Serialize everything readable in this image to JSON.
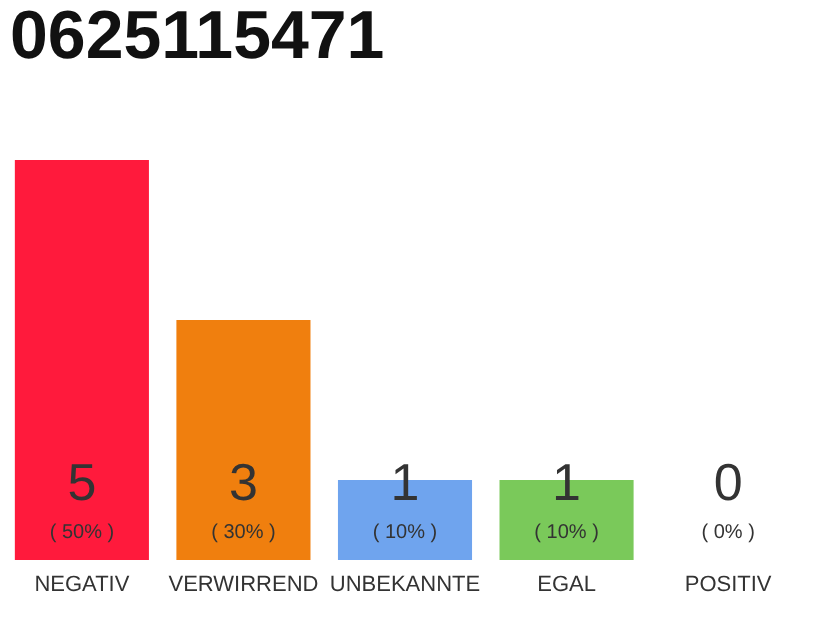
{
  "chart_data": {
    "type": "bar",
    "title": "0625115471",
    "categories": [
      "NEGATIV",
      "VERWIRREND",
      "UNBEKANNTE",
      "EGAL",
      "POSITIV"
    ],
    "values": [
      5,
      3,
      1,
      1,
      0
    ],
    "colors": [
      "#ff1a3c",
      "#f07f0e",
      "#6fa4ee",
      "#7ac95a",
      "#bbbbbb"
    ],
    "data_labels": true,
    "annotations": [
      "( 50% )",
      "( 30% )",
      "( 10% )",
      "( 10% )",
      "( 0% )"
    ]
  }
}
